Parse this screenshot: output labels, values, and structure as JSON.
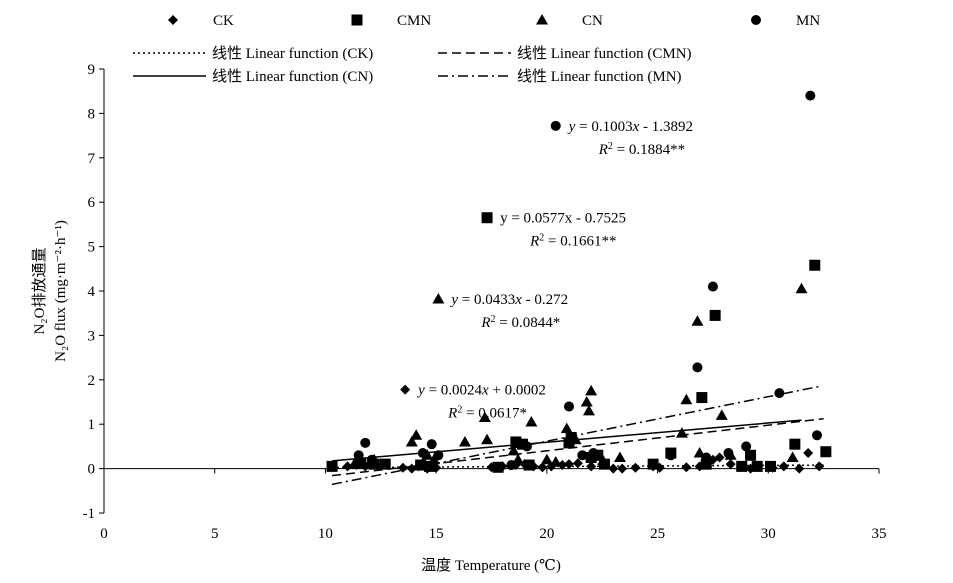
{
  "chart_data": {
    "type": "scatter",
    "xlabel": "温度 Temperature (℃)",
    "ylabel_line1": "N₂O排放通量",
    "ylabel_line2": "N₂O flux (mg·m⁻²·h⁻¹)",
    "xlim": [
      0,
      35
    ],
    "ylim": [
      -1,
      9
    ],
    "xticks": [
      0,
      5,
      10,
      15,
      20,
      25,
      30,
      35
    ],
    "yticks": [
      -1,
      0,
      1,
      2,
      3,
      4,
      5,
      6,
      7,
      8,
      9
    ],
    "grid": false,
    "legend_position": "top",
    "series": [
      {
        "name": "CK",
        "marker": "diamond",
        "points": [
          [
            10.3,
            0.05
          ],
          [
            11.0,
            0.05
          ],
          [
            11.4,
            0.08
          ],
          [
            11.8,
            0.05
          ],
          [
            12.0,
            0.1
          ],
          [
            12.3,
            0.08
          ],
          [
            13.5,
            0.02
          ],
          [
            13.9,
            0.0
          ],
          [
            14.2,
            0.05
          ],
          [
            14.6,
            0.0
          ],
          [
            15.0,
            0.02
          ],
          [
            17.5,
            0.03
          ],
          [
            18.0,
            0.05
          ],
          [
            18.6,
            0.08
          ],
          [
            19.0,
            0.1
          ],
          [
            19.4,
            0.05
          ],
          [
            19.8,
            0.03
          ],
          [
            20.2,
            0.05
          ],
          [
            20.7,
            0.08
          ],
          [
            21.0,
            0.1
          ],
          [
            21.4,
            0.12
          ],
          [
            22.0,
            0.05
          ],
          [
            22.5,
            0.1
          ],
          [
            23.0,
            0.0
          ],
          [
            23.4,
            0.0
          ],
          [
            24.0,
            0.02
          ],
          [
            24.8,
            0.05
          ],
          [
            25.1,
            0.02
          ],
          [
            26.3,
            0.03
          ],
          [
            26.9,
            0.05
          ],
          [
            27.2,
            0.15
          ],
          [
            27.5,
            0.2
          ],
          [
            27.8,
            0.25
          ],
          [
            28.3,
            0.1
          ],
          [
            29.2,
            0.0
          ],
          [
            30.2,
            0.02
          ],
          [
            30.7,
            0.05
          ],
          [
            31.4,
            0.0
          ],
          [
            31.8,
            0.35
          ],
          [
            32.3,
            0.05
          ]
        ]
      },
      {
        "name": "CMN",
        "marker": "square",
        "points": [
          [
            10.3,
            0.05
          ],
          [
            11.6,
            0.12
          ],
          [
            12.2,
            0.1
          ],
          [
            12.7,
            0.1
          ],
          [
            14.3,
            0.08
          ],
          [
            14.7,
            0.05
          ],
          [
            17.8,
            0.03
          ],
          [
            18.6,
            0.6
          ],
          [
            18.9,
            0.55
          ],
          [
            19.2,
            0.08
          ],
          [
            21.0,
            0.58
          ],
          [
            21.1,
            0.7
          ],
          [
            22.0,
            0.25
          ],
          [
            22.3,
            0.3
          ],
          [
            22.6,
            0.1
          ],
          [
            24.8,
            0.1
          ],
          [
            25.6,
            0.35
          ],
          [
            27.0,
            1.6
          ],
          [
            27.2,
            0.1
          ],
          [
            27.6,
            3.45
          ],
          [
            28.8,
            0.05
          ],
          [
            29.2,
            0.3
          ],
          [
            29.5,
            0.05
          ],
          [
            30.1,
            0.05
          ],
          [
            31.2,
            0.55
          ],
          [
            32.1,
            4.58
          ],
          [
            32.6,
            0.38
          ]
        ]
      },
      {
        "name": "CN",
        "marker": "triangle",
        "points": [
          [
            11.3,
            0.1
          ],
          [
            12.2,
            0.2
          ],
          [
            13.9,
            0.6
          ],
          [
            14.1,
            0.75
          ],
          [
            14.6,
            0.3
          ],
          [
            14.9,
            0.2
          ],
          [
            16.3,
            0.6
          ],
          [
            17.2,
            1.15
          ],
          [
            17.3,
            0.65
          ],
          [
            18.5,
            0.4
          ],
          [
            18.7,
            0.2
          ],
          [
            19.3,
            1.05
          ],
          [
            20.0,
            0.2
          ],
          [
            20.4,
            0.15
          ],
          [
            20.9,
            0.9
          ],
          [
            21.3,
            0.65
          ],
          [
            21.8,
            1.5
          ],
          [
            21.9,
            1.3
          ],
          [
            22.0,
            1.75
          ],
          [
            22.4,
            0.3
          ],
          [
            23.3,
            0.25
          ],
          [
            26.1,
            0.8
          ],
          [
            26.3,
            1.55
          ],
          [
            26.8,
            3.32
          ],
          [
            26.9,
            0.35
          ],
          [
            27.2,
            0.2
          ],
          [
            27.9,
            1.2
          ],
          [
            28.3,
            0.3
          ],
          [
            31.1,
            0.25
          ],
          [
            31.5,
            4.05
          ]
        ]
      },
      {
        "name": "MN",
        "marker": "circle",
        "points": [
          [
            11.5,
            0.3
          ],
          [
            11.8,
            0.58
          ],
          [
            12.1,
            0.2
          ],
          [
            14.4,
            0.35
          ],
          [
            14.8,
            0.55
          ],
          [
            15.1,
            0.3
          ],
          [
            18.4,
            0.08
          ],
          [
            18.7,
            0.58
          ],
          [
            19.1,
            0.5
          ],
          [
            21.0,
            1.4
          ],
          [
            21.6,
            0.3
          ],
          [
            22.1,
            0.35
          ],
          [
            25.6,
            0.3
          ],
          [
            26.8,
            2.28
          ],
          [
            27.2,
            0.25
          ],
          [
            27.5,
            4.1
          ],
          [
            28.2,
            0.35
          ],
          [
            29.0,
            0.5
          ],
          [
            30.5,
            1.7
          ],
          [
            31.9,
            8.4
          ],
          [
            32.2,
            0.75
          ]
        ]
      }
    ],
    "fits": [
      {
        "series": "CK",
        "style": "dotted",
        "slope": 0.0024,
        "intercept": 0.0002,
        "x_range": [
          10.3,
          32.5
        ]
      },
      {
        "series": "CMN",
        "style": "dashed",
        "slope": 0.0577,
        "intercept": -0.7525,
        "x_range": [
          10.3,
          32.5
        ]
      },
      {
        "series": "CN",
        "style": "solid",
        "slope": 0.0433,
        "intercept": -0.272,
        "x_range": [
          10.3,
          31.5
        ]
      },
      {
        "series": "MN",
        "style": "dashdot",
        "slope": 0.1003,
        "intercept": -1.3892,
        "x_range": [
          10.3,
          32.3
        ]
      }
    ],
    "annotations": [
      {
        "series": "MN",
        "marker": "circle",
        "anchor": [
          20.4,
          7.72
        ],
        "eq": "y = 0.1003x - 1.3892",
        "r2": "0.1884**",
        "italic": true
      },
      {
        "series": "CMN",
        "marker": "square",
        "anchor": [
          17.3,
          5.65
        ],
        "eq": "y = 0.0577x - 0.7525",
        "r2": "0.1661**",
        "italic": false
      },
      {
        "series": "CN",
        "marker": "triangle",
        "anchor": [
          15.1,
          3.82
        ],
        "eq": "y = 0.0433x - 0.272",
        "r2": "0.0844*",
        "italic": true
      },
      {
        "series": "CK",
        "marker": "diamond",
        "anchor": [
          13.6,
          1.78
        ],
        "eq": "y = 0.0024x + 0.0002",
        "r2": "0.0617*",
        "italic": true
      }
    ],
    "legend": {
      "markers": [
        {
          "series": "CK",
          "label": "CK"
        },
        {
          "series": "CMN",
          "label": "CMN"
        },
        {
          "series": "CN",
          "label": "CN"
        },
        {
          "series": "MN",
          "label": "MN"
        }
      ],
      "lines": [
        {
          "style": "dotted",
          "label": "线性 Linear function (CK)"
        },
        {
          "style": "dashed",
          "label": "线性 Linear function (CMN)"
        },
        {
          "style": "solid",
          "label": "线性 Linear function (CN)"
        },
        {
          "style": "dashdot",
          "label": "线性 Linear function (MN)"
        }
      ]
    }
  }
}
